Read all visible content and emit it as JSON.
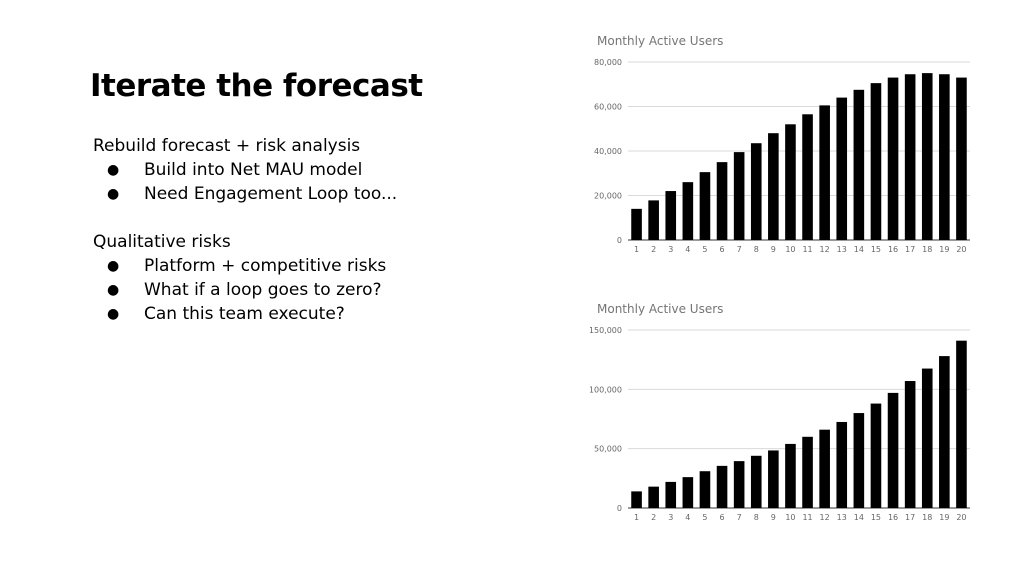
{
  "slide": {
    "title": "Iterate the forecast",
    "section1": {
      "heading": "Rebuild forecast + risk analysis",
      "bullets": [
        "Build into Net MAU model",
        "Need Engagement Loop too..."
      ]
    },
    "section2": {
      "heading": "Qualitative risks",
      "bullets": [
        "Platform + competitive risks",
        "What if a loop goes to zero?",
        "Can this team execute?"
      ]
    }
  },
  "colors": {
    "bar": "#000000",
    "grid": "#d9d9d9",
    "axis": "#333333"
  },
  "chart_data": [
    {
      "type": "bar",
      "title": "Monthly Active Users",
      "categories": [
        "1",
        "2",
        "3",
        "4",
        "5",
        "6",
        "7",
        "8",
        "9",
        "10",
        "11",
        "12",
        "13",
        "14",
        "15",
        "16",
        "17",
        "18",
        "19",
        "20"
      ],
      "values": [
        14000,
        17800,
        22000,
        26000,
        30500,
        35000,
        39500,
        43500,
        48000,
        52000,
        56500,
        60500,
        64000,
        67500,
        70500,
        73000,
        74500,
        75000,
        74500,
        73000
      ],
      "yticks": [
        "0",
        "20,000",
        "40,000",
        "60,000",
        "80,000"
      ],
      "ylim": [
        0,
        80000
      ],
      "grid": true,
      "legend": "none"
    },
    {
      "type": "bar",
      "title": "Monthly Active Users",
      "categories": [
        "1",
        "2",
        "3",
        "4",
        "5",
        "6",
        "7",
        "8",
        "9",
        "10",
        "11",
        "12",
        "13",
        "14",
        "15",
        "16",
        "17",
        "18",
        "19",
        "20"
      ],
      "values": [
        14000,
        18000,
        22000,
        26000,
        31000,
        35500,
        39500,
        44000,
        48500,
        54000,
        60000,
        66000,
        72500,
        80000,
        88000,
        97000,
        107000,
        117500,
        128000,
        141000
      ],
      "yticks": [
        "0",
        "50,000",
        "100,000",
        "150,000"
      ],
      "ylim": [
        0,
        150000
      ],
      "grid": true,
      "legend": "none"
    }
  ]
}
